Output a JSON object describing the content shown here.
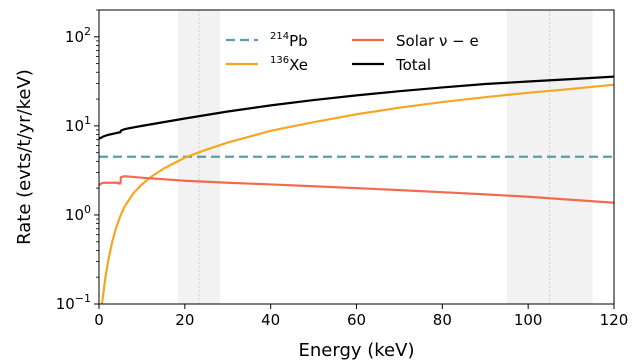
{
  "chart_data": {
    "type": "line",
    "xlabel": "Energy (keV)",
    "ylabel": "Rate (evts/t/yr/keV)",
    "xlim": [
      0,
      120
    ],
    "ylim": [
      0.1,
      200
    ],
    "yscale": "log",
    "x_ticks": [
      "0",
      "20",
      "40",
      "60",
      "80",
      "100",
      "120"
    ],
    "x_tick_values": [
      0,
      20,
      40,
      60,
      80,
      100,
      120
    ],
    "y_tick_values": [
      0.1,
      1,
      10,
      100
    ],
    "y_ticks": [
      {
        "base": "10",
        "exp": "−1"
      },
      {
        "base": "10",
        "exp": "0"
      },
      {
        "base": "10",
        "exp": "1"
      },
      {
        "base": "10",
        "exp": "2"
      }
    ],
    "shaded_regions": [
      {
        "from": 18.4,
        "to": 28.2,
        "center": 23.3
      },
      {
        "from": 95,
        "to": 115,
        "center": 105
      }
    ],
    "legend_placement": "top-center",
    "series": [
      {
        "name": "Pb",
        "name_sup": "214",
        "color": "#5f9ea0",
        "style": "dashed",
        "x": [
          0,
          120
        ],
        "y": [
          4.5,
          4.5
        ]
      },
      {
        "name": "Xe",
        "name_sup": "136",
        "color": "#f5a623",
        "style": "solid",
        "x": [
          0.7,
          1,
          1.5,
          2,
          3,
          4,
          5,
          6,
          8,
          10,
          12,
          15,
          20,
          25,
          30,
          40,
          50,
          60,
          70,
          80,
          90,
          100,
          110,
          120
        ],
        "y": [
          0.1,
          0.13,
          0.2,
          0.28,
          0.48,
          0.72,
          0.98,
          1.25,
          1.75,
          2.2,
          2.65,
          3.3,
          4.4,
          5.4,
          6.5,
          8.8,
          11,
          13.5,
          16,
          18.5,
          21,
          23.5,
          26,
          29
        ]
      },
      {
        "name": "Solar ν − e",
        "color": "#f36b4f",
        "style": "solid",
        "x": [
          0,
          0.5,
          1,
          2,
          3,
          4.5,
          4.6,
          5,
          5.1,
          6,
          10,
          20,
          30,
          40,
          50,
          60,
          70,
          80,
          90,
          100,
          110,
          120
        ],
        "y": [
          2.15,
          2.25,
          2.3,
          2.3,
          2.3,
          2.3,
          2.25,
          2.25,
          2.65,
          2.72,
          2.62,
          2.42,
          2.3,
          2.2,
          2.1,
          2.0,
          1.9,
          1.8,
          1.7,
          1.6,
          1.48,
          1.37
        ]
      },
      {
        "name": "Total",
        "color": "#000000",
        "style": "solid",
        "x": [
          0,
          0.5,
          1,
          2,
          3,
          4.5,
          5,
          5.1,
          6,
          10,
          20,
          30,
          40,
          50,
          60,
          70,
          80,
          90,
          100,
          110,
          120
        ],
        "y": [
          7.2,
          7.35,
          7.6,
          7.9,
          8.1,
          8.4,
          8.5,
          8.85,
          9.2,
          10,
          12.1,
          14.5,
          17,
          19.5,
          22,
          24.5,
          27,
          29.5,
          31.5,
          33.5,
          35.7
        ]
      }
    ]
  }
}
